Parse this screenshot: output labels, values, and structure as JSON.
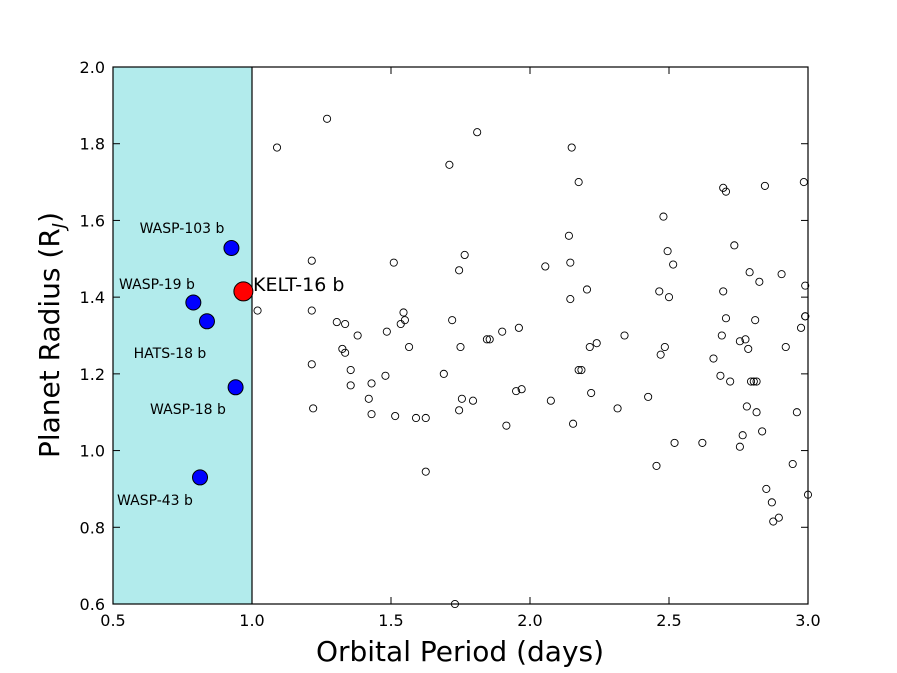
{
  "chart_data": {
    "type": "scatter",
    "title": "",
    "xlabel": "Orbital Period (days)",
    "ylabel_main": "Planet Radius (R",
    "ylabel_sub": "J",
    "ylabel_close": ")",
    "xlim": [
      0.5,
      3.0
    ],
    "ylim": [
      0.6,
      2.0
    ],
    "xticks": [
      "0.5",
      "1.0",
      "1.5",
      "2.0",
      "2.5",
      "3.0"
    ],
    "yticks": [
      "0.6",
      "0.8",
      "1.0",
      "1.2",
      "1.4",
      "1.6",
      "1.8",
      "2.0"
    ],
    "shaded_region": {
      "x_from": 0.5,
      "x_to": 1.0,
      "color": "#b2ebec"
    },
    "colors": {
      "labeled": "#0000ff",
      "highlight": "#ff0000",
      "other_edge": "#000000"
    },
    "labeled_planets": [
      {
        "name": "WASP-103 b",
        "x": 0.926,
        "y": 1.528
      },
      {
        "name": "WASP-19 b",
        "x": 0.789,
        "y": 1.386
      },
      {
        "name": "HATS-18 b",
        "x": 0.838,
        "y": 1.337
      },
      {
        "name": "WASP-18 b",
        "x": 0.941,
        "y": 1.165
      },
      {
        "name": "WASP-43 b",
        "x": 0.813,
        "y": 0.93
      }
    ],
    "highlight_planet": {
      "name": "KELT-16 b",
      "x": 0.969,
      "y": 1.415
    },
    "other_planets": [
      [
        1.09,
        1.79
      ],
      [
        1.02,
        1.365
      ],
      [
        1.215,
        1.495
      ],
      [
        1.215,
        1.365
      ],
      [
        1.215,
        1.225
      ],
      [
        1.22,
        1.11
      ],
      [
        1.27,
        1.865
      ],
      [
        1.305,
        1.335
      ],
      [
        1.325,
        1.265
      ],
      [
        1.335,
        1.255
      ],
      [
        1.335,
        1.33
      ],
      [
        1.355,
        1.21
      ],
      [
        1.355,
        1.17
      ],
      [
        1.38,
        1.3
      ],
      [
        1.42,
        1.135
      ],
      [
        1.43,
        1.175
      ],
      [
        1.43,
        1.095
      ],
      [
        1.48,
        1.195
      ],
      [
        1.485,
        1.31
      ],
      [
        1.51,
        1.49
      ],
      [
        1.515,
        1.09
      ],
      [
        1.535,
        1.33
      ],
      [
        1.545,
        1.36
      ],
      [
        1.55,
        1.34
      ],
      [
        1.565,
        1.27
      ],
      [
        1.59,
        1.085
      ],
      [
        1.625,
        1.085
      ],
      [
        1.625,
        0.945
      ],
      [
        1.69,
        1.2
      ],
      [
        1.71,
        1.745
      ],
      [
        1.72,
        1.34
      ],
      [
        1.745,
        1.47
      ],
      [
        1.745,
        1.105
      ],
      [
        1.75,
        1.27
      ],
      [
        1.755,
        1.135
      ],
      [
        1.765,
        1.51
      ],
      [
        1.795,
        1.13
      ],
      [
        1.81,
        1.83
      ],
      [
        1.845,
        1.29
      ],
      [
        1.855,
        1.29
      ],
      [
        1.9,
        1.31
      ],
      [
        1.915,
        1.065
      ],
      [
        1.95,
        1.155
      ],
      [
        1.96,
        1.32
      ],
      [
        1.97,
        1.16
      ],
      [
        2.055,
        1.48
      ],
      [
        2.075,
        1.13
      ],
      [
        2.14,
        1.56
      ],
      [
        2.145,
        1.49
      ],
      [
        2.145,
        1.395
      ],
      [
        2.15,
        1.79
      ],
      [
        2.155,
        1.07
      ],
      [
        2.175,
        1.7
      ],
      [
        2.175,
        1.21
      ],
      [
        2.185,
        1.21
      ],
      [
        2.205,
        1.42
      ],
      [
        2.215,
        1.27
      ],
      [
        2.22,
        1.15
      ],
      [
        2.24,
        1.28
      ],
      [
        2.315,
        1.11
      ],
      [
        2.34,
        1.3
      ],
      [
        2.425,
        1.14
      ],
      [
        2.455,
        0.96
      ],
      [
        2.465,
        1.415
      ],
      [
        2.47,
        1.25
      ],
      [
        2.48,
        1.61
      ],
      [
        2.485,
        1.27
      ],
      [
        2.495,
        1.52
      ],
      [
        2.5,
        1.4
      ],
      [
        2.515,
        1.485
      ],
      [
        2.52,
        1.02
      ],
      [
        2.62,
        1.02
      ],
      [
        2.66,
        1.24
      ],
      [
        2.685,
        1.195
      ],
      [
        2.69,
        1.3
      ],
      [
        2.695,
        1.685
      ],
      [
        2.695,
        1.415
      ],
      [
        2.705,
        1.675
      ],
      [
        2.705,
        1.345
      ],
      [
        2.72,
        1.18
      ],
      [
        2.735,
        1.535
      ],
      [
        2.755,
        1.01
      ],
      [
        2.755,
        1.285
      ],
      [
        2.765,
        1.04
      ],
      [
        2.775,
        1.29
      ],
      [
        2.78,
        1.115
      ],
      [
        2.785,
        1.265
      ],
      [
        2.79,
        1.465
      ],
      [
        2.795,
        1.18
      ],
      [
        2.805,
        1.18
      ],
      [
        2.81,
        1.34
      ],
      [
        2.815,
        1.1
      ],
      [
        2.815,
        1.18
      ],
      [
        2.825,
        1.44
      ],
      [
        2.835,
        1.05
      ],
      [
        2.845,
        1.69
      ],
      [
        2.85,
        0.9
      ],
      [
        2.87,
        0.865
      ],
      [
        2.875,
        0.815
      ],
      [
        2.895,
        0.825
      ],
      [
        2.905,
        1.46
      ],
      [
        2.92,
        1.27
      ],
      [
        2.945,
        0.965
      ],
      [
        2.96,
        1.1
      ],
      [
        2.975,
        1.32
      ],
      [
        2.985,
        1.7
      ],
      [
        2.99,
        1.43
      ],
      [
        2.99,
        1.35
      ],
      [
        2.99,
        1.35
      ],
      [
        3.0,
        0.885
      ],
      [
        1.73,
        0.6
      ]
    ]
  }
}
